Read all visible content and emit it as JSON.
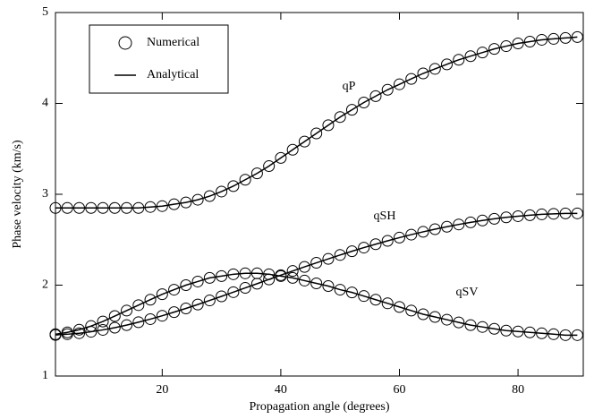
{
  "chart_data": {
    "type": "line",
    "xlabel": "Propagation angle (degrees)",
    "ylabel": "Phase velocity (km/s)",
    "legend": [
      "Numerical",
      "Analytical"
    ],
    "legend_position": "upper left",
    "x": [
      2,
      4,
      6,
      8,
      10,
      12,
      14,
      16,
      18,
      20,
      22,
      24,
      26,
      28,
      30,
      32,
      34,
      36,
      38,
      40,
      42,
      44,
      46,
      48,
      50,
      52,
      54,
      56,
      58,
      60,
      62,
      64,
      66,
      68,
      70,
      72,
      74,
      76,
      78,
      80,
      82,
      84,
      86,
      88,
      90
    ],
    "series": [
      {
        "name": "qP",
        "color": "#000000",
        "values": [
          2.85,
          2.85,
          2.85,
          2.85,
          2.85,
          2.85,
          2.85,
          2.85,
          2.86,
          2.87,
          2.89,
          2.91,
          2.94,
          2.98,
          3.03,
          3.09,
          3.16,
          3.23,
          3.31,
          3.4,
          3.49,
          3.58,
          3.67,
          3.76,
          3.85,
          3.93,
          4.01,
          4.08,
          4.15,
          4.21,
          4.27,
          4.33,
          4.38,
          4.43,
          4.48,
          4.52,
          4.56,
          4.6,
          4.63,
          4.66,
          4.68,
          4.7,
          4.71,
          4.72,
          4.73
        ]
      },
      {
        "name": "qSH",
        "color": "#000000",
        "values": [
          1.452,
          1.46,
          1.471,
          1.487,
          1.508,
          1.532,
          1.56,
          1.592,
          1.626,
          1.663,
          1.703,
          1.744,
          1.787,
          1.832,
          1.877,
          1.923,
          1.97,
          2.016,
          2.063,
          2.11,
          2.156,
          2.201,
          2.246,
          2.289,
          2.332,
          2.373,
          2.413,
          2.451,
          2.488,
          2.523,
          2.556,
          2.587,
          2.616,
          2.643,
          2.668,
          2.691,
          2.712,
          2.73,
          2.746,
          2.759,
          2.77,
          2.779,
          2.785,
          2.789,
          2.79
        ]
      },
      {
        "name": "qSV",
        "color": "#000000",
        "values": [
          1.46,
          1.48,
          1.51,
          1.55,
          1.6,
          1.66,
          1.72,
          1.78,
          1.84,
          1.9,
          1.95,
          2.0,
          2.04,
          2.08,
          2.1,
          2.12,
          2.13,
          2.13,
          2.12,
          2.1,
          2.08,
          2.05,
          2.02,
          1.99,
          1.95,
          1.92,
          1.88,
          1.84,
          1.8,
          1.76,
          1.72,
          1.68,
          1.65,
          1.62,
          1.59,
          1.56,
          1.54,
          1.52,
          1.5,
          1.49,
          1.48,
          1.47,
          1.46,
          1.45,
          1.45
        ]
      }
    ],
    "xlim": [
      2,
      91
    ],
    "xticks": [
      20,
      40,
      60,
      80
    ],
    "ylim": [
      1,
      5
    ],
    "yticks": [
      1,
      2,
      3,
      4,
      5
    ]
  }
}
